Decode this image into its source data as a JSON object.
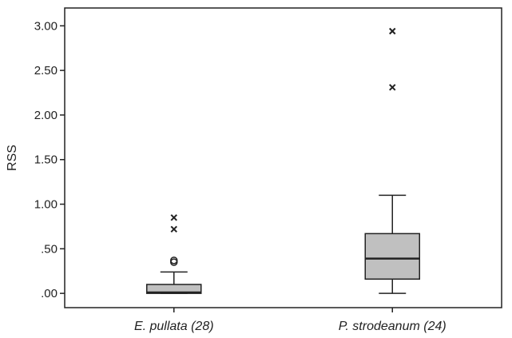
{
  "chart_data": {
    "type": "boxplot",
    "title": "",
    "xlabel": "",
    "ylabel": "RSS",
    "ylim": [
      -0.16,
      3.2
    ],
    "yticks": [
      0.0,
      0.5,
      1.0,
      1.5,
      2.0,
      2.5,
      3.0
    ],
    "ytick_labels": [
      ".00",
      ".50",
      "1.00",
      "1.50",
      "2.00",
      "2.50",
      "3.00"
    ],
    "grid": false,
    "categories": [
      "E. pullata (28)",
      "P. strodeanum (24)"
    ],
    "series": [
      {
        "category": "E. pullata (28)",
        "whisker_low": 0.0,
        "q1": 0.0,
        "median": 0.01,
        "q3": 0.1,
        "whisker_high": 0.24,
        "outliers": [
          0.35,
          0.37
        ],
        "extremes": [
          0.72,
          0.85
        ]
      },
      {
        "category": "P. strodeanum (24)",
        "whisker_low": 0.0,
        "q1": 0.16,
        "median": 0.39,
        "q3": 0.67,
        "whisker_high": 1.1,
        "outliers": [],
        "extremes": [
          2.31,
          2.94
        ]
      }
    ],
    "box_color": "#c0c0c0",
    "line_color": "#222222"
  }
}
